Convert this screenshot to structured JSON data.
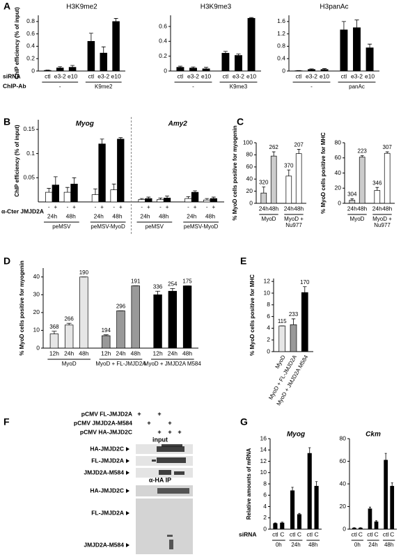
{
  "chart_data": [
    {
      "type": "bar",
      "panel": "A",
      "title": "H3K9me2",
      "ylabel": "ChIP efficiency (% of input)",
      "row_labels": [
        "siRNA",
        "ChIP-Ab"
      ],
      "categories": [
        "ctl",
        "e3-2",
        "e10",
        "ctl",
        "e3-2",
        "e10"
      ],
      "groups": [
        "-",
        "K9me2"
      ],
      "series": [
        {
          "color": "#000000",
          "values": [
            0.01,
            0.05,
            0.06,
            0.48,
            0.29,
            0.8
          ],
          "errors": [
            0.005,
            0.02,
            0.03,
            0.13,
            0.1,
            0.05
          ]
        }
      ],
      "ylim": [
        0,
        0.9
      ],
      "yticks": [
        0,
        0.2,
        0.4,
        0.6,
        0.8
      ]
    },
    {
      "type": "bar",
      "title": "H3K9me3",
      "categories": [
        "ctl",
        "e3-2",
        "e10",
        "ctl",
        "e3-2",
        "e10"
      ],
      "groups": [
        "-",
        "K9me3"
      ],
      "series": [
        {
          "color": "#000000",
          "values": [
            0.05,
            0.04,
            0.03,
            0.24,
            0.21,
            0.71
          ],
          "errors": [
            0.015,
            0.015,
            0.02,
            0.025,
            0.02,
            0.01
          ]
        }
      ],
      "ylim": [
        0,
        0.75
      ],
      "yticks": [
        0,
        0.2,
        0.4,
        0.6
      ]
    },
    {
      "type": "bar",
      "title": "H3panAc",
      "categories": [
        "ctl",
        "e3-2",
        "e10",
        "ctl",
        "e3-2",
        "e10"
      ],
      "groups": [
        "-",
        "panAc"
      ],
      "series": [
        {
          "color": "#000000",
          "values": [
            0.01,
            0.05,
            0.05,
            1.33,
            1.4,
            0.75
          ],
          "errors": [
            0.005,
            0.02,
            0.03,
            0.27,
            0.25,
            0.12
          ]
        }
      ],
      "ylim": [
        0,
        1.8
      ],
      "yticks": [
        0,
        0.4,
        0.8,
        1.2,
        1.6
      ]
    },
    {
      "type": "bar",
      "panel": "B",
      "ylabel": "ChIP efficiency (% of input)",
      "row_labels": [
        "α-Cter JMJD2A"
      ],
      "sections": [
        "Myog",
        "Amy2"
      ],
      "categories": [
        "24h",
        "48h",
        "24h",
        "48h",
        "24h",
        "48h",
        "24h",
        "48h"
      ],
      "groups": [
        "peMSV",
        "peMSV-MyoD",
        "peMSV",
        "peMSV-MyoD"
      ],
      "series": [
        {
          "name": "-",
          "color": "#ffffff",
          "values": [
            0.02,
            0.02,
            0.015,
            0.025,
            0.005,
            0.005,
            0.007,
            0.004
          ],
          "errors": [
            0.008,
            0.01,
            0.012,
            0.012,
            0.002,
            0.003,
            0.004,
            0.003
          ]
        },
        {
          "name": "+",
          "color": "#000000",
          "values": [
            0.035,
            0.037,
            0.12,
            0.13,
            0.007,
            0.008,
            0.02,
            0.007
          ],
          "errors": [
            0.017,
            0.013,
            0.01,
            0.003,
            0.003,
            0.004,
            0.003,
            0.003
          ]
        }
      ],
      "ylim": [
        0,
        0.17
      ],
      "yticks": [
        0.05,
        0.1,
        0.15
      ]
    },
    {
      "type": "bar",
      "panel": "C",
      "ylabel": "% MyoD cells positive for myogenin",
      "categories": [
        "24h",
        "48h",
        "24h",
        "48h"
      ],
      "groups": [
        "MyoD",
        "MyoD + Nu977"
      ],
      "series": [
        {
          "colors": [
            "#cccccc",
            "#cccccc",
            "#ffffff",
            "#ffffff"
          ],
          "values": [
            17,
            78,
            45,
            82
          ],
          "errors": [
            10,
            7,
            10,
            7
          ]
        }
      ],
      "counts": [
        320,
        262,
        370,
        207
      ],
      "ylim": [
        0,
        100
      ],
      "yticks": [
        0,
        20,
        40,
        60,
        80,
        100
      ]
    },
    {
      "type": "bar",
      "ylabel": "% MyoD cells positive for MHC",
      "categories": [
        "24h",
        "48h",
        "24h",
        "48h"
      ],
      "groups": [
        "MyoD",
        "MyoD + Nu977"
      ],
      "series": [
        {
          "colors": [
            "#cccccc",
            "#cccccc",
            "#ffffff",
            "#ffffff"
          ],
          "values": [
            4,
            61,
            17,
            66
          ],
          "errors": [
            2,
            2,
            4,
            2
          ]
        }
      ],
      "counts": [
        304,
        223,
        346,
        307
      ],
      "ylim": [
        0,
        80
      ],
      "yticks": [
        0,
        20,
        40,
        60,
        80
      ]
    },
    {
      "type": "bar",
      "panel": "D",
      "ylabel": "% MyoD cells positive for myogenin",
      "categories": [
        "12h",
        "24h",
        "48h",
        "12h",
        "24h",
        "48h",
        "12h",
        "24h",
        "48h"
      ],
      "groups": [
        "MyoD",
        "MyoD + FL-JMJD2A",
        "MyoD + JMJD2A M584"
      ],
      "series": [
        {
          "colors": [
            "#e6e6e6",
            "#e6e6e6",
            "#e6e6e6",
            "#999999",
            "#999999",
            "#999999",
            "#000000",
            "#000000",
            "#000000"
          ],
          "values": [
            8,
            13,
            40,
            7,
            21,
            35,
            30,
            32,
            35
          ],
          "errors": [
            1.5,
            1,
            0,
            0.5,
            0,
            0,
            2,
            1.5,
            0
          ]
        }
      ],
      "counts": [
        368,
        266,
        190,
        194,
        296,
        191,
        336,
        254,
        175
      ],
      "ylim": [
        0,
        45
      ],
      "yticks": [
        0,
        10,
        20,
        30,
        40
      ]
    },
    {
      "type": "bar",
      "panel": "E",
      "ylabel": "% MyoD cells positive for MHC",
      "categories": [
        "MyoD",
        "MyoD + FL-JMJD2A",
        "MyoD + JMJD2A M584"
      ],
      "series": [
        {
          "colors": [
            "#e6e6e6",
            "#999999",
            "#000000"
          ],
          "values": [
            4.4,
            4.6,
            10.1
          ],
          "errors": [
            0,
            1,
            1
          ]
        }
      ],
      "counts": [
        115,
        233,
        170
      ],
      "ylim": [
        0,
        12.5
      ],
      "yticks": [
        0,
        2,
        4,
        6,
        8,
        10,
        12
      ]
    },
    {
      "type": "bar",
      "panel": "G",
      "title": "Myog",
      "ylabel": "Relative amounts of mRNA",
      "row_labels": [
        "siRNA"
      ],
      "categories": [
        "ctl",
        "C",
        "ctl",
        "C",
        "ctl",
        "C"
      ],
      "groups": [
        "0h",
        "24h",
        "48h"
      ],
      "series": [
        {
          "color": "#000000",
          "values": [
            1,
            1.1,
            6.8,
            2.6,
            13.4,
            7.6
          ],
          "errors": [
            0.1,
            0.15,
            0.6,
            0.2,
            1,
            0.8
          ]
        }
      ],
      "ylim": [
        0,
        16
      ],
      "yticks": [
        0,
        2,
        4,
        6,
        8,
        10,
        12,
        14,
        16
      ]
    },
    {
      "type": "bar",
      "title": "Ckm",
      "categories": [
        "ctl",
        "C",
        "ctl",
        "C",
        "ctl",
        "C"
      ],
      "groups": [
        "0h",
        "24h",
        "48h"
      ],
      "series": [
        {
          "color": "#000000",
          "values": [
            1,
            1,
            18,
            6.5,
            61,
            38
          ],
          "errors": [
            0.3,
            0.3,
            1.5,
            1,
            6,
            3
          ]
        }
      ],
      "ylim": [
        0,
        80
      ],
      "yticks": [
        0,
        20,
        40,
        60,
        80
      ]
    }
  ],
  "blot": {
    "panel": "F",
    "treatments": [
      {
        "label": "pCMV FL-JMJD2A",
        "signs": [
          "+",
          "+"
        ]
      },
      {
        "label": "pCMV JMJD2A-M584",
        "signs": [
          "+",
          "+"
        ]
      },
      {
        "label": "pCMV HA-JMJD2C",
        "signs": [
          "+",
          "+",
          "+"
        ]
      }
    ],
    "sections": [
      {
        "title": "input",
        "rows": [
          "HA-JMJD2C",
          "FL-JMJD2A",
          "JMJD2A-M584"
        ]
      },
      {
        "title": "α-HA IP",
        "rows": [
          "HA-JMJD2C",
          "FL-JMJD2A",
          "JMJD2A-M584"
        ]
      }
    ]
  }
}
